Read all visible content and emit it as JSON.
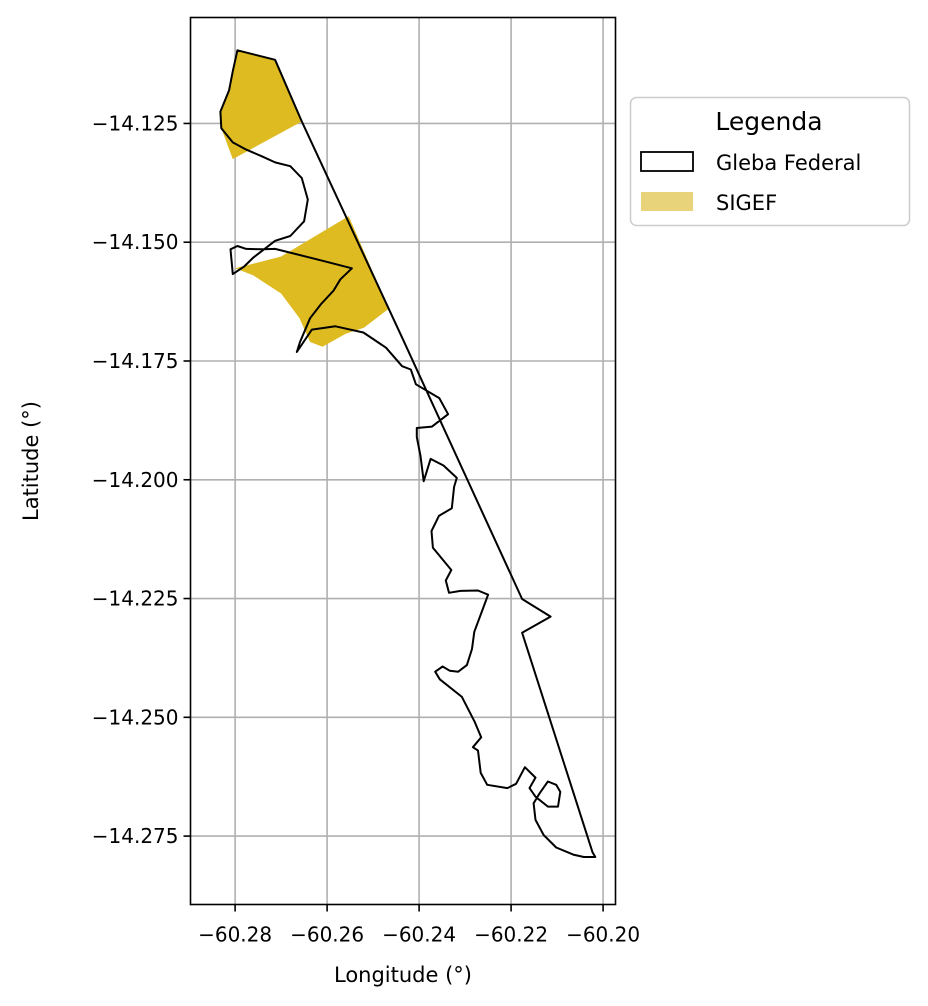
{
  "chart_data": {
    "type": "map",
    "xlabel": "Longitude (°)",
    "ylabel": "Latitude (°)",
    "xlim": [
      -60.2897,
      -60.1973
    ],
    "ylim": [
      -14.2894,
      -14.1027
    ],
    "xticks": [
      -60.28,
      -60.26,
      -60.24,
      -60.22,
      -60.2
    ],
    "xtick_labels": [
      "−60.28",
      "−60.26",
      "−60.24",
      "−60.22",
      "−60.20"
    ],
    "yticks": [
      -14.125,
      -14.15,
      -14.175,
      -14.2,
      -14.225,
      -14.25,
      -14.275
    ],
    "ytick_labels": [
      "−14.125",
      "−14.150",
      "−14.175",
      "−14.200",
      "−14.225",
      "−14.250",
      "−14.275"
    ],
    "grid": true,
    "legend": {
      "title": "Legenda",
      "placement": "outside-right-top",
      "entries": [
        {
          "label": "Gleba Federal",
          "style": "outline",
          "color": "#000000"
        },
        {
          "label": "SIGEF",
          "style": "fill",
          "color": "#e8d27a"
        }
      ]
    },
    "colors": {
      "gleba_outline": "#000000",
      "sigef_fill": "#dfbb22",
      "grid": "#b0b0b0"
    },
    "layers": [
      {
        "name": "Gleba Federal",
        "style": "outline",
        "coordinates": [
          [
            -60.2795,
            -14.1096
          ],
          [
            -60.2713,
            -14.1116
          ],
          [
            -60.2655,
            -14.1246
          ],
          [
            -60.2434,
            -14.1707
          ],
          [
            -60.2176,
            -14.2251
          ],
          [
            -60.2114,
            -14.2288
          ],
          [
            -60.2176,
            -14.2322
          ],
          [
            -60.2023,
            -14.2784
          ],
          [
            -60.2017,
            -14.2794
          ],
          [
            -60.2042,
            -14.2794
          ],
          [
            -60.2065,
            -14.2789
          ],
          [
            -60.2102,
            -14.2774
          ],
          [
            -60.2129,
            -14.2748
          ],
          [
            -60.2147,
            -14.2716
          ],
          [
            -60.2151,
            -14.2681
          ],
          [
            -60.2138,
            -14.266
          ],
          [
            -60.212,
            -14.2635
          ],
          [
            -60.2102,
            -14.2642
          ],
          [
            -60.2093,
            -14.2657
          ],
          [
            -60.2098,
            -14.2688
          ],
          [
            -60.212,
            -14.2688
          ],
          [
            -60.2147,
            -14.2667
          ],
          [
            -60.216,
            -14.2649
          ],
          [
            -60.2147,
            -14.2627
          ],
          [
            -60.217,
            -14.2605
          ],
          [
            -60.2189,
            -14.264
          ],
          [
            -60.2208,
            -14.2649
          ],
          [
            -60.2252,
            -14.2642
          ],
          [
            -60.2266,
            -14.2617
          ],
          [
            -60.2272,
            -14.257
          ],
          [
            -60.2283,
            -14.2563
          ],
          [
            -60.2265,
            -14.2542
          ],
          [
            -60.2279,
            -14.251
          ],
          [
            -60.2307,
            -14.2457
          ],
          [
            -60.2355,
            -14.242
          ],
          [
            -60.2365,
            -14.2404
          ],
          [
            -60.2349,
            -14.2393
          ],
          [
            -60.2333,
            -14.2402
          ],
          [
            -60.2315,
            -14.2404
          ],
          [
            -60.2296,
            -14.239
          ],
          [
            -60.2285,
            -14.2356
          ],
          [
            -60.228,
            -14.232
          ],
          [
            -60.2263,
            -14.2276
          ],
          [
            -60.225,
            -14.2242
          ],
          [
            -60.2272,
            -14.2233
          ],
          [
            -60.231,
            -14.2234
          ],
          [
            -60.2335,
            -14.2238
          ],
          [
            -60.2342,
            -14.2212
          ],
          [
            -60.233,
            -14.219
          ],
          [
            -60.2358,
            -14.2157
          ],
          [
            -60.237,
            -14.2143
          ],
          [
            -60.2373,
            -14.2108
          ],
          [
            -60.2357,
            -14.2076
          ],
          [
            -60.2329,
            -14.206
          ],
          [
            -60.2324,
            -14.2015
          ],
          [
            -60.2318,
            -14.1996
          ],
          [
            -60.2347,
            -14.197
          ],
          [
            -60.2375,
            -14.1956
          ],
          [
            -60.239,
            -14.2003
          ],
          [
            -60.2397,
            -14.195
          ],
          [
            -60.2405,
            -14.191
          ],
          [
            -60.2405,
            -14.1891
          ],
          [
            -60.2372,
            -14.1888
          ],
          [
            -60.2337,
            -14.1862
          ],
          [
            -60.2356,
            -14.1828
          ],
          [
            -60.2407,
            -14.1799
          ],
          [
            -60.2418,
            -14.1768
          ],
          [
            -60.2437,
            -14.1761
          ],
          [
            -60.2472,
            -14.1722
          ],
          [
            -60.2521,
            -14.169
          ],
          [
            -60.2582,
            -14.1677
          ],
          [
            -60.2633,
            -14.1684
          ],
          [
            -60.2666,
            -14.1731
          ],
          [
            -60.2659,
            -14.171
          ],
          [
            -60.2637,
            -14.166
          ],
          [
            -60.2613,
            -14.163
          ],
          [
            -60.2586,
            -14.1602
          ],
          [
            -60.2571,
            -14.1578
          ],
          [
            -60.2546,
            -14.1555
          ],
          [
            -60.2618,
            -14.1537
          ],
          [
            -60.2713,
            -14.1514
          ],
          [
            -60.274,
            -14.1515
          ],
          [
            -60.2776,
            -14.1514
          ],
          [
            -60.2795,
            -14.1508
          ],
          [
            -60.281,
            -14.1515
          ],
          [
            -60.2805,
            -14.1567
          ],
          [
            -60.278,
            -14.1551
          ],
          [
            -60.276,
            -14.1532
          ],
          [
            -60.2736,
            -14.1514
          ],
          [
            -60.2713,
            -14.1497
          ],
          [
            -60.268,
            -14.1487
          ],
          [
            -60.265,
            -14.1456
          ],
          [
            -60.2642,
            -14.141
          ],
          [
            -60.2655,
            -14.1365
          ],
          [
            -60.268,
            -14.134
          ],
          [
            -60.2713,
            -14.1332
          ],
          [
            -60.274,
            -14.132
          ],
          [
            -60.2776,
            -14.1305
          ],
          [
            -60.2805,
            -14.129
          ],
          [
            -60.283,
            -14.126
          ],
          [
            -60.2832,
            -14.1225
          ],
          [
            -60.2813,
            -14.118
          ],
          [
            -60.2805,
            -14.114
          ],
          [
            -60.2795,
            -14.1096
          ]
        ]
      },
      {
        "name": "SIGEF",
        "style": "fill",
        "coordinates": [
          [
            -60.2795,
            -14.1096
          ],
          [
            -60.2713,
            -14.1116
          ],
          [
            -60.2655,
            -14.1246
          ],
          [
            -60.2805,
            -14.1325
          ],
          [
            -60.283,
            -14.126
          ],
          [
            -60.2832,
            -14.1225
          ],
          [
            -60.2813,
            -14.118
          ],
          [
            -60.2805,
            -14.114
          ]
        ]
      },
      {
        "name": "SIGEF",
        "style": "fill",
        "coordinates": [
          [
            -60.2553,
            -14.1445
          ],
          [
            -60.2466,
            -14.164
          ],
          [
            -60.252,
            -14.168
          ],
          [
            -60.256,
            -14.1693
          ],
          [
            -60.261,
            -14.172
          ],
          [
            -60.2637,
            -14.171
          ],
          [
            -60.266,
            -14.166
          ],
          [
            -60.27,
            -14.1608
          ],
          [
            -60.276,
            -14.157
          ],
          [
            -60.28,
            -14.1555
          ],
          [
            -60.27,
            -14.153
          ]
        ]
      }
    ]
  }
}
